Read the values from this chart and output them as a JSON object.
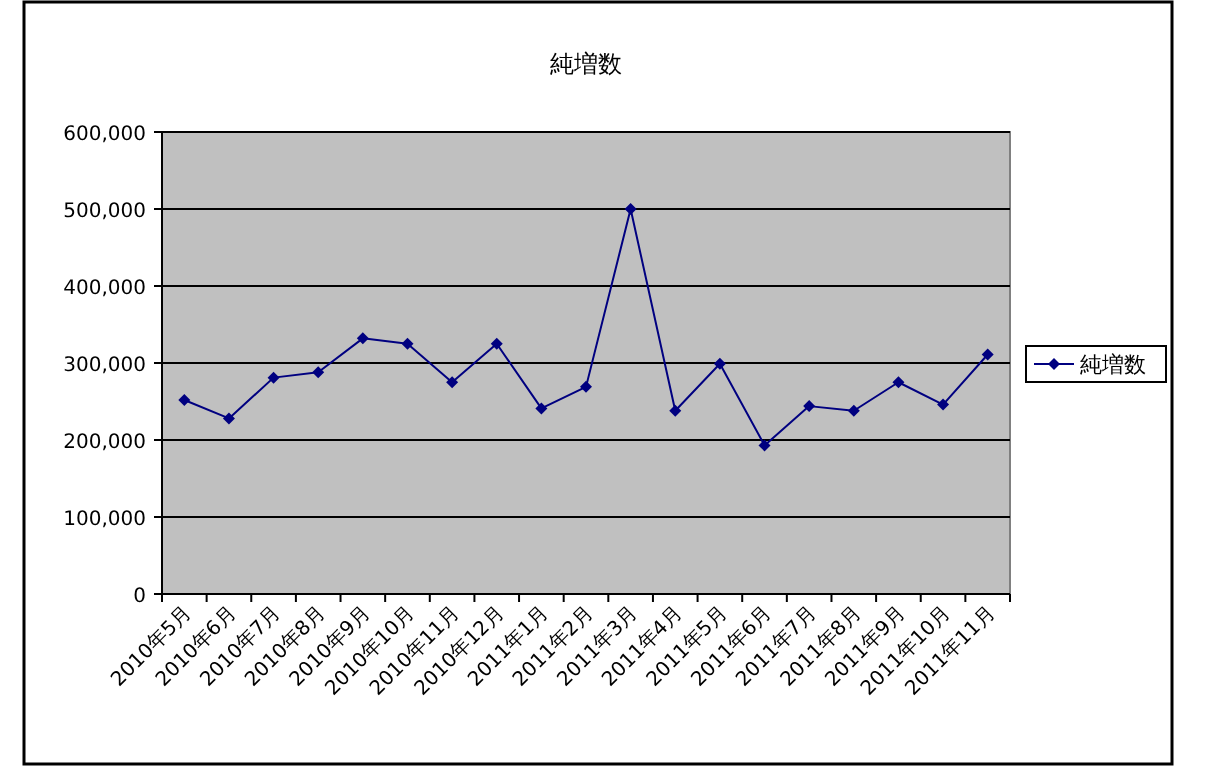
{
  "chart_data": {
    "type": "line",
    "title": "純増数",
    "categories": [
      "2010年5月",
      "2010年6月",
      "2010年7月",
      "2010年8月",
      "2010年9月",
      "2010年10月",
      "2010年11月",
      "2010年12月",
      "2011年1月",
      "2011年2月",
      "2011年3月",
      "2011年4月",
      "2011年5月",
      "2011年6月",
      "2011年7月",
      "2011年8月",
      "2011年9月",
      "2011年10月",
      "2011年11月"
    ],
    "series": [
      {
        "name": "純増数",
        "color": "#000080",
        "values": [
          252000,
          228000,
          281000,
          288000,
          332000,
          325000,
          275000,
          325000,
          241000,
          269000,
          500000,
          238000,
          299000,
          193000,
          244000,
          238000,
          275000,
          246000,
          311000
        ]
      }
    ],
    "ylim": [
      0,
      600000
    ],
    "yticks": [
      {
        "value": 0,
        "label": "0"
      },
      {
        "value": 100000,
        "label": "100,000"
      },
      {
        "value": 200000,
        "label": "200,000"
      },
      {
        "value": 300000,
        "label": "300,000"
      },
      {
        "value": 400000,
        "label": "400,000"
      },
      {
        "value": 500000,
        "label": "500,000"
      },
      {
        "value": 600000,
        "label": "600,000"
      }
    ],
    "grid": "y",
    "legend": "right",
    "marker": "diamond"
  }
}
